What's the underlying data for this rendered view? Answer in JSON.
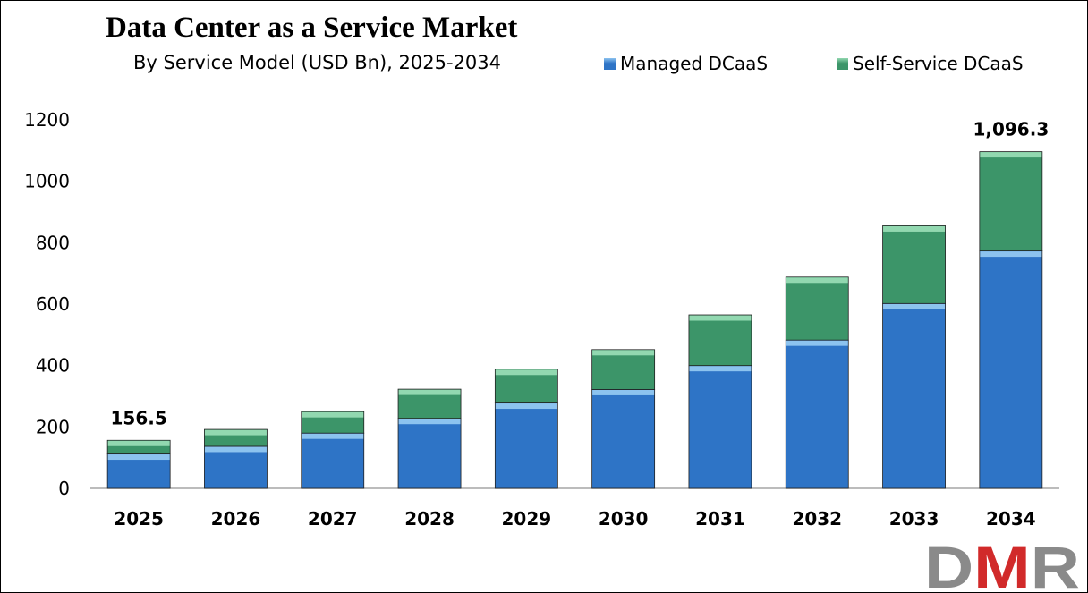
{
  "colors": {
    "managed": "#2e74c6",
    "managed_light": "#8cc3ef",
    "self_service": "#3c9569",
    "self_service_light": "#92d8b0",
    "axis": "#a6a6a6",
    "logo_gray": "#8a8a8a",
    "logo_red": "#d12a2a"
  },
  "logo": {
    "text": "DMR"
  },
  "chart_data": {
    "type": "bar",
    "stacked": true,
    "title": "Data Center as a Service Market",
    "subtitle": "By Service Model (USD Bn), 2025-2034",
    "categories": [
      "2025",
      "2026",
      "2027",
      "2028",
      "2029",
      "2030",
      "2031",
      "2032",
      "2033",
      "2034"
    ],
    "series": [
      {
        "name": "Managed DCaaS",
        "values": [
          112,
          137,
          180,
          228,
          278,
          322,
          400,
          483,
          602,
          773
        ]
      },
      {
        "name": "Self-Service DCaaS",
        "values": [
          44.5,
          55,
          70,
          95,
          110,
          130,
          165,
          205,
          253,
          323.3
        ]
      }
    ],
    "totals_labels": [
      {
        "category": "2025",
        "text": "156.5"
      },
      {
        "category": "2034",
        "text": "1,096.3"
      }
    ],
    "ylim": [
      0,
      1200
    ],
    "yticks": [
      "0",
      "200",
      "400",
      "600",
      "800",
      "1000",
      "1200"
    ],
    "grid": false,
    "legend_position": "top-right"
  }
}
